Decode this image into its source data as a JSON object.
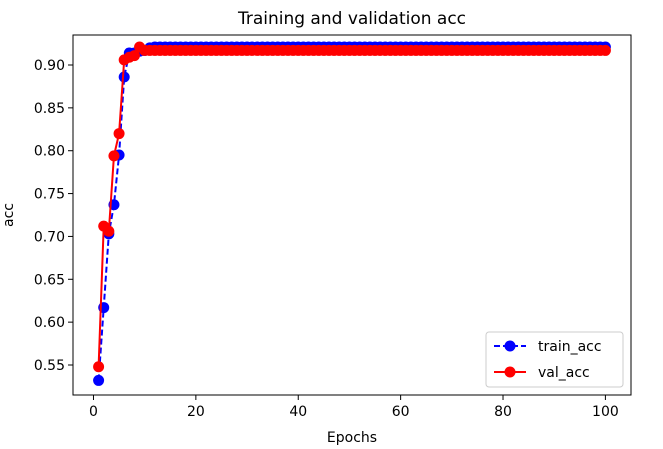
{
  "chart_data": {
    "type": "line",
    "title": "Training and validation acc",
    "xlabel": "Epochs",
    "ylabel": "acc",
    "xlim": [
      -4,
      105
    ],
    "ylim": [
      0.515,
      0.935
    ],
    "xticks": [
      0,
      20,
      40,
      60,
      80,
      100
    ],
    "yticks": [
      0.55,
      0.6,
      0.65,
      0.7,
      0.75,
      0.8,
      0.85,
      0.9
    ],
    "grid": false,
    "legend_position": "lower-right",
    "x": [
      1,
      2,
      3,
      4,
      5,
      6,
      7,
      8,
      9,
      10,
      11,
      12,
      13,
      14,
      15,
      16,
      17,
      18,
      19,
      20,
      21,
      22,
      23,
      24,
      25,
      26,
      27,
      28,
      29,
      30,
      31,
      32,
      33,
      34,
      35,
      36,
      37,
      38,
      39,
      40,
      41,
      42,
      43,
      44,
      45,
      46,
      47,
      48,
      49,
      50,
      51,
      52,
      53,
      54,
      55,
      56,
      57,
      58,
      59,
      60,
      61,
      62,
      63,
      64,
      65,
      66,
      67,
      68,
      69,
      70,
      71,
      72,
      73,
      74,
      75,
      76,
      77,
      78,
      79,
      80,
      81,
      82,
      83,
      84,
      85,
      86,
      87,
      88,
      89,
      90,
      91,
      92,
      93,
      94,
      95,
      96,
      97,
      98,
      99,
      100
    ],
    "series": [
      {
        "name": "train_acc",
        "color": "#0000ff",
        "linestyle": "dashed",
        "marker": "circle",
        "values": [
          0.532,
          0.617,
          0.703,
          0.737,
          0.795,
          0.886,
          0.914,
          0.914,
          0.916,
          0.917,
          0.92,
          0.921,
          0.921,
          0.921,
          0.921,
          0.921,
          0.921,
          0.921,
          0.921,
          0.921,
          0.921,
          0.921,
          0.921,
          0.921,
          0.921,
          0.921,
          0.921,
          0.921,
          0.921,
          0.921,
          0.921,
          0.921,
          0.921,
          0.921,
          0.921,
          0.921,
          0.921,
          0.921,
          0.921,
          0.921,
          0.921,
          0.921,
          0.921,
          0.921,
          0.921,
          0.921,
          0.921,
          0.921,
          0.921,
          0.921,
          0.921,
          0.921,
          0.921,
          0.921,
          0.921,
          0.921,
          0.921,
          0.921,
          0.921,
          0.921,
          0.921,
          0.921,
          0.921,
          0.921,
          0.921,
          0.921,
          0.921,
          0.921,
          0.921,
          0.921,
          0.921,
          0.921,
          0.921,
          0.921,
          0.921,
          0.921,
          0.921,
          0.921,
          0.921,
          0.921,
          0.921,
          0.921,
          0.921,
          0.921,
          0.921,
          0.921,
          0.921,
          0.921,
          0.921,
          0.921,
          0.921,
          0.921,
          0.921,
          0.921,
          0.921,
          0.921,
          0.921,
          0.921,
          0.921,
          0.921
        ]
      },
      {
        "name": "val_acc",
        "color": "#ff0000",
        "linestyle": "solid",
        "marker": "circle",
        "values": [
          0.548,
          0.712,
          0.706,
          0.794,
          0.82,
          0.906,
          0.909,
          0.911,
          0.921,
          0.917,
          0.917,
          0.917,
          0.917,
          0.917,
          0.917,
          0.917,
          0.917,
          0.917,
          0.917,
          0.917,
          0.917,
          0.917,
          0.917,
          0.917,
          0.917,
          0.917,
          0.917,
          0.917,
          0.917,
          0.917,
          0.917,
          0.917,
          0.917,
          0.917,
          0.917,
          0.917,
          0.917,
          0.917,
          0.917,
          0.917,
          0.917,
          0.917,
          0.917,
          0.917,
          0.917,
          0.917,
          0.917,
          0.917,
          0.917,
          0.917,
          0.917,
          0.917,
          0.917,
          0.917,
          0.917,
          0.917,
          0.917,
          0.917,
          0.917,
          0.917,
          0.917,
          0.917,
          0.917,
          0.917,
          0.917,
          0.917,
          0.917,
          0.917,
          0.917,
          0.917,
          0.917,
          0.917,
          0.917,
          0.917,
          0.917,
          0.917,
          0.917,
          0.917,
          0.917,
          0.917,
          0.917,
          0.917,
          0.917,
          0.917,
          0.917,
          0.917,
          0.917,
          0.917,
          0.917,
          0.917,
          0.917,
          0.917,
          0.917,
          0.917,
          0.917,
          0.917,
          0.917,
          0.917,
          0.917,
          0.917
        ]
      }
    ]
  }
}
